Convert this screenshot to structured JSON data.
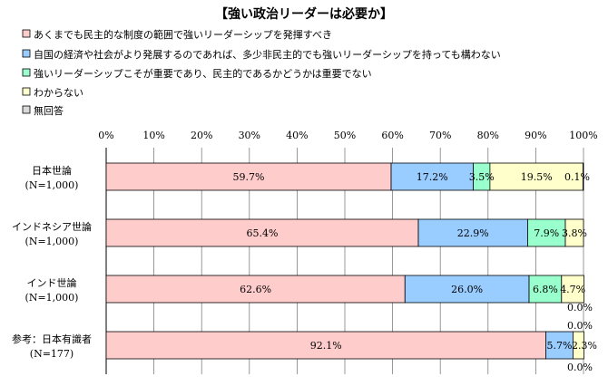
{
  "chart_data": {
    "type": "bar",
    "orientation": "horizontal",
    "stacked": true,
    "percent_stacked": true,
    "title": "【強い政治リーダーは必要か】",
    "xlim": [
      0,
      100
    ],
    "x_ticks": [
      "0%",
      "10%",
      "20%",
      "30%",
      "40%",
      "50%",
      "60%",
      "70%",
      "80%",
      "90%",
      "100%"
    ],
    "grid": "vertical",
    "legend_position": "top-left",
    "categories": [
      {
        "name": "日本世論",
        "n": "(N=1,000)"
      },
      {
        "name": "インドネシア世論",
        "n": "(N=1,000)"
      },
      {
        "name": "インド世論",
        "n": "(N=1,000)"
      },
      {
        "name": "参考：日本有識者",
        "n": "(N=177)"
      }
    ],
    "series": [
      {
        "name": "あくまでも民主的な制度の範囲で強いリーダーシップを発揮すべき",
        "color": "#ffcccc",
        "values": [
          59.7,
          65.4,
          62.6,
          92.1
        ],
        "labels": [
          "59.7%",
          "65.4%",
          "62.6%",
          "92.1%"
        ]
      },
      {
        "name": "自国の経済や社会がより発展するのであれば、多少非民主的でも強いリーダーシップを持っても構わない",
        "color": "#99ccff",
        "values": [
          17.2,
          22.9,
          26.0,
          5.7
        ],
        "labels": [
          "17.2%",
          "22.9%",
          "26.0%",
          "5.7%"
        ]
      },
      {
        "name": "強いリーダーシップこそが重要であり、民主的であるかどうかは重要でない",
        "color": "#99ffcc",
        "values": [
          3.5,
          7.9,
          6.8,
          0.0
        ],
        "labels": [
          "3.5%",
          "7.9%",
          "6.8%",
          "0.0%"
        ]
      },
      {
        "name": "わからない",
        "color": "#ffffcc",
        "values": [
          19.5,
          3.8,
          4.7,
          2.3
        ],
        "labels": [
          "19.5%",
          "3.8%",
          "4.7%",
          "2.3%"
        ]
      },
      {
        "name": "無回答",
        "color": "#d9d9d9",
        "values": [
          0.1,
          0.0,
          0.0,
          0.0
        ],
        "labels": [
          "0.1%",
          "",
          "0.0%",
          "0.0%"
        ]
      }
    ]
  }
}
